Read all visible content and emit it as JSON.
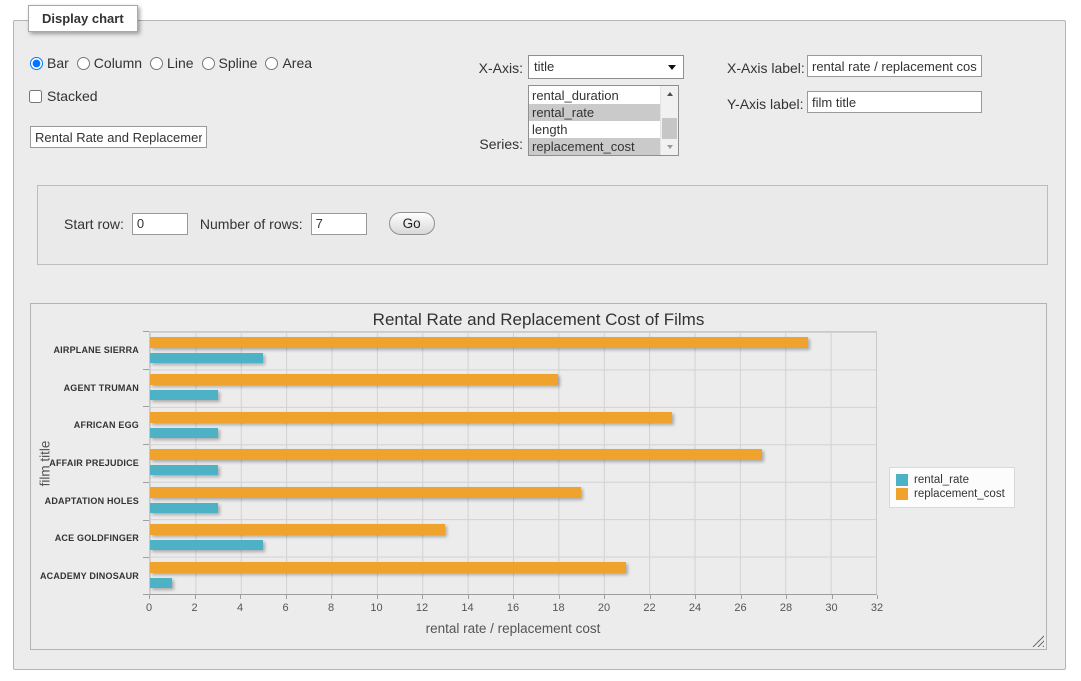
{
  "panel": {
    "legend": "Display chart"
  },
  "controls": {
    "chart_types": [
      {
        "label": "Bar",
        "checked": true
      },
      {
        "label": "Column",
        "checked": false
      },
      {
        "label": "Line",
        "checked": false
      },
      {
        "label": "Spline",
        "checked": false
      },
      {
        "label": "Area",
        "checked": false
      }
    ],
    "stacked_label": "Stacked",
    "stacked_checked": false,
    "title_input_value": "Rental Rate and Replacement Cost of Films",
    "x_axis_label_text": "X-Axis:",
    "x_axis_select_value": "title",
    "series_label_text": "Series:",
    "series_options": [
      {
        "label": "rental_duration",
        "selected": false
      },
      {
        "label": "rental_rate",
        "selected": true
      },
      {
        "label": "length",
        "selected": false
      },
      {
        "label": "replacement_cost",
        "selected": true
      }
    ],
    "x_axis_field_label": "X-Axis label:",
    "x_axis_label_value": "rental rate / replacement cost",
    "y_axis_field_label": "Y-Axis label:",
    "y_axis_label_value": "film title"
  },
  "row_controls": {
    "start_row_label": "Start row:",
    "start_row_value": "0",
    "num_rows_label": "Number of rows:",
    "num_rows_value": "7",
    "go_label": "Go"
  },
  "chart_data": {
    "type": "bar",
    "title": "Rental Rate and Replacement Cost of Films",
    "categories": [
      "AIRPLANE SIERRA",
      "AGENT TRUMAN",
      "AFRICAN EGG",
      "AFFAIR PREJUDICE",
      "ADAPTATION HOLES",
      "ACE GOLDFINGER",
      "ACADEMY DINOSAUR"
    ],
    "series": [
      {
        "name": "rental_rate",
        "color": "#4db2c6",
        "values": [
          4.99,
          2.99,
          2.99,
          2.99,
          2.99,
          4.99,
          0.99
        ]
      },
      {
        "name": "replacement_cost",
        "color": "#efa32c",
        "values": [
          28.99,
          17.99,
          22.99,
          26.99,
          18.99,
          12.99,
          20.99
        ]
      }
    ],
    "bar_display_order": [
      "replacement_cost",
      "rental_rate"
    ],
    "xlabel": "rental rate / replacement cost",
    "ylabel": "film title",
    "xlim": [
      0,
      32
    ],
    "xtick_step": 2,
    "legend_position": "right",
    "grid": true
  }
}
